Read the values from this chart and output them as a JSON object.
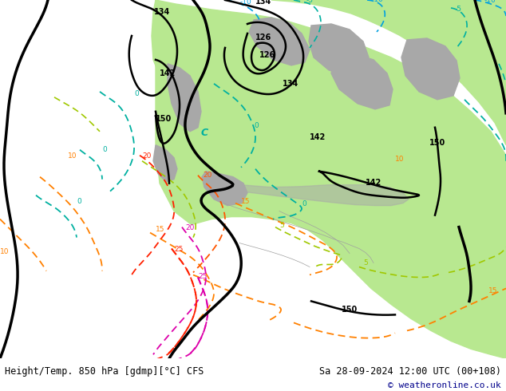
{
  "title_left": "Height/Temp. 850 hPa [gdmp][°C] CFS",
  "title_right": "Sa 28-09-2024 12:00 UTC (00+108)",
  "copyright": "© weatheronline.co.uk",
  "bg_color": "#c8c8c8",
  "ocean_color": "#d0d0d0",
  "land_green": "#b8e890",
  "land_gray": "#a8a8a8",
  "fig_width": 6.34,
  "fig_height": 4.9,
  "dpi": 100,
  "title_fontsize": 8.5,
  "copyright_color": "#00008b",
  "copyright_fontsize": 8
}
